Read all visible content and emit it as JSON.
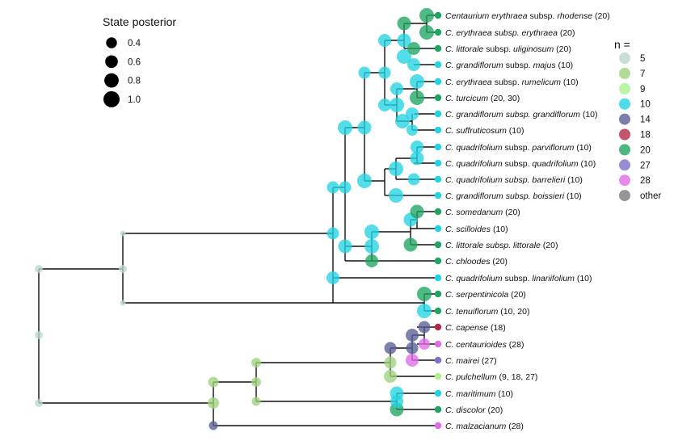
{
  "size_legend": {
    "title": "State posterior",
    "items": [
      {
        "label": "0.4",
        "value": 0.4
      },
      {
        "label": "0.6",
        "value": 0.6
      },
      {
        "label": "0.8",
        "value": 0.8
      },
      {
        "label": "1.0",
        "value": 1.0
      }
    ]
  },
  "color_legend": {
    "title": "n =",
    "items": [
      {
        "label": "5",
        "color": "#b9d8cb"
      },
      {
        "label": "7",
        "color": "#9ed27d"
      },
      {
        "label": "9",
        "color": "#a7f28c"
      },
      {
        "label": "10",
        "color": "#22d3e3"
      },
      {
        "label": "14",
        "color": "#5a5e95"
      },
      {
        "label": "18",
        "color": "#b5284a"
      },
      {
        "label": "20",
        "color": "#1fa560"
      },
      {
        "label": "27",
        "color": "#7e71c8"
      },
      {
        "label": "28",
        "color": "#e06be7"
      },
      {
        "label": "other",
        "color": "#7a7a7a"
      }
    ]
  },
  "tips": [
    {
      "parts": [
        {
          "t": "Centaurium erythraea",
          "i": true
        },
        {
          "t": " subsp. ",
          "i": false
        },
        {
          "t": "rhodense",
          "i": true
        },
        {
          "t": " (20)",
          "i": false
        }
      ],
      "color": "#1fa560"
    },
    {
      "parts": [
        {
          "t": "C. erythraea subsp. erythraea",
          "i": true
        },
        {
          "t": " (20)",
          "i": false
        }
      ],
      "color": "#1fa560"
    },
    {
      "parts": [
        {
          "t": "C. littorale",
          "i": true
        },
        {
          "t": " subsp. ",
          "i": false
        },
        {
          "t": "uliginosum",
          "i": true
        },
        {
          "t": " (20)",
          "i": false
        }
      ],
      "color": "#1fa560"
    },
    {
      "parts": [
        {
          "t": "C. grandiflorum",
          "i": true
        },
        {
          "t": " subsp. ",
          "i": false
        },
        {
          "t": "majus",
          "i": true
        },
        {
          "t": " (10)",
          "i": false
        }
      ],
      "color": "#22d3e3"
    },
    {
      "parts": [
        {
          "t": "C. erythraea",
          "i": true
        },
        {
          "t": " subsp. ",
          "i": false
        },
        {
          "t": "rumelicum",
          "i": true
        },
        {
          "t": " (10)",
          "i": false
        }
      ],
      "color": "#22d3e3"
    },
    {
      "parts": [
        {
          "t": "C. turcicum",
          "i": true
        },
        {
          "t": " (20, 30)",
          "i": false
        }
      ],
      "color": "#1fa560"
    },
    {
      "parts": [
        {
          "t": "C. grandiflorum subsp. grandiflorum",
          "i": true
        },
        {
          "t": " (10)",
          "i": false
        }
      ],
      "color": "#22d3e3"
    },
    {
      "parts": [
        {
          "t": "C. suffruticosum",
          "i": true
        },
        {
          "t": " (10)",
          "i": false
        }
      ],
      "color": "#22d3e3"
    },
    {
      "parts": [
        {
          "t": "C. quadrifolium",
          "i": true
        },
        {
          "t": " subsp. ",
          "i": false
        },
        {
          "t": "parviflorum",
          "i": true
        },
        {
          "t": " (10)",
          "i": false
        }
      ],
      "color": "#22d3e3"
    },
    {
      "parts": [
        {
          "t": "C. quadrifolium",
          "i": true
        },
        {
          "t": " subsp. ",
          "i": false
        },
        {
          "t": "quadrifolium",
          "i": true
        },
        {
          "t": " (10)",
          "i": false
        }
      ],
      "color": "#22d3e3"
    },
    {
      "parts": [
        {
          "t": "C. quadrifolium subsp. barrelieri",
          "i": true
        },
        {
          "t": " (10)",
          "i": false
        }
      ],
      "color": "#22d3e3"
    },
    {
      "parts": [
        {
          "t": "C. grandiflorum subsp. boissieri",
          "i": true
        },
        {
          "t": " (10)",
          "i": false
        }
      ],
      "color": "#22d3e3"
    },
    {
      "parts": [
        {
          "t": "C. somedanum",
          "i": true
        },
        {
          "t": " (20)",
          "i": false
        }
      ],
      "color": "#1fa560"
    },
    {
      "parts": [
        {
          "t": "C. scilloides",
          "i": true
        },
        {
          "t": " (10)",
          "i": false
        }
      ],
      "color": "#22d3e3"
    },
    {
      "parts": [
        {
          "t": "C. littorale subsp. littorale",
          "i": true
        },
        {
          "t": " (20)",
          "i": false
        }
      ],
      "color": "#1fa560"
    },
    {
      "parts": [
        {
          "t": "C. chloodes",
          "i": true
        },
        {
          "t": " (20)",
          "i": false
        }
      ],
      "color": "#1fa560"
    },
    {
      "parts": [
        {
          "t": "C. quadrifolium",
          "i": true
        },
        {
          "t": " subsp. ",
          "i": false
        },
        {
          "t": "linariifolium",
          "i": true
        },
        {
          "t": " (10)",
          "i": false
        }
      ],
      "color": "#22d3e3"
    },
    {
      "parts": [
        {
          "t": "C. serpentinicola",
          "i": true
        },
        {
          "t": " (20)",
          "i": false
        }
      ],
      "color": "#1fa560"
    },
    {
      "parts": [
        {
          "t": "C. tenuiflorum",
          "i": true
        },
        {
          "t": " (10, 20)",
          "i": false
        }
      ],
      "color": "#1fa560"
    },
    {
      "parts": [
        {
          "t": "C. capense",
          "i": true
        },
        {
          "t": " (18)",
          "i": false
        }
      ],
      "color": "#b5284a"
    },
    {
      "parts": [
        {
          "t": "C. centaurioides",
          "i": true
        },
        {
          "t": " (28)",
          "i": false
        }
      ],
      "color": "#e06be7"
    },
    {
      "parts": [
        {
          "t": "C. mairei",
          "i": true
        },
        {
          "t": " (27)",
          "i": false
        }
      ],
      "color": "#7e71c8"
    },
    {
      "parts": [
        {
          "t": "C. pulchellum",
          "i": true
        },
        {
          "t": " (9, 18, 27)",
          "i": false
        }
      ],
      "color": "#a7f28c"
    },
    {
      "parts": [
        {
          "t": "C. maritimum",
          "i": true
        },
        {
          "t": " (10)",
          "i": false
        }
      ],
      "color": "#22d3e3"
    },
    {
      "parts": [
        {
          "t": "C. discolor",
          "i": true
        },
        {
          "t": " (20)",
          "i": false
        }
      ],
      "color": "#1fa560"
    },
    {
      "parts": [
        {
          "t": "C. malzacianum",
          "i": true
        },
        {
          "t": " (28)",
          "i": false
        }
      ],
      "color": "#e06be7"
    }
  ]
}
